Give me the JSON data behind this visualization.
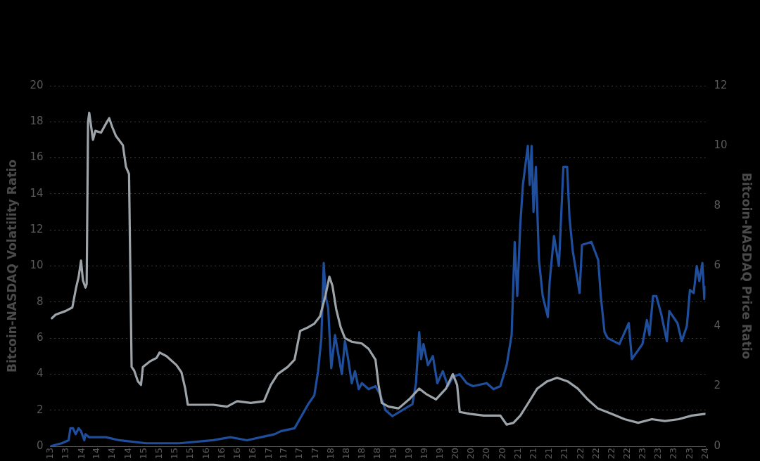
{
  "chart_data": {
    "type": "line",
    "ylabel": "Bitcoin-NASDAQ Volatility Ratio",
    "y2label": "Bitcoin-NASDAQ Price Ratio",
    "xlim": [
      "2013-07-01",
      "2024-01-01"
    ],
    "xticks": [
      {
        "value": "2013-07",
        "label": "13"
      },
      {
        "value": "2013-10",
        "label": "13"
      },
      {
        "value": "2014-01",
        "label": "14"
      },
      {
        "value": "2014-04",
        "label": "14"
      },
      {
        "value": "2014-07",
        "label": "14"
      },
      {
        "value": "2014-10",
        "label": "14"
      },
      {
        "value": "2015-01",
        "label": "15"
      },
      {
        "value": "2015-04",
        "label": "15"
      },
      {
        "value": "2015-07",
        "label": "15"
      },
      {
        "value": "2015-10",
        "label": "15"
      },
      {
        "value": "2016-01",
        "label": "16"
      },
      {
        "value": "2016-04",
        "label": "16"
      },
      {
        "value": "2016-07",
        "label": "16"
      },
      {
        "value": "2016-10",
        "label": "16"
      },
      {
        "value": "2017-01",
        "label": "17"
      },
      {
        "value": "2017-04",
        "label": "17"
      },
      {
        "value": "2017-07",
        "label": "17"
      },
      {
        "value": "2017-10",
        "label": "17"
      },
      {
        "value": "2018-01",
        "label": "18"
      },
      {
        "value": "2018-04",
        "label": "18"
      },
      {
        "value": "2018-07",
        "label": "18"
      },
      {
        "value": "2018-10",
        "label": "18"
      },
      {
        "value": "2019-01",
        "label": "19"
      },
      {
        "value": "2019-04",
        "label": "19"
      },
      {
        "value": "2019-07",
        "label": "19"
      },
      {
        "value": "2019-10",
        "label": "19"
      },
      {
        "value": "2020-01",
        "label": "20"
      },
      {
        "value": "2020-04",
        "label": "20"
      },
      {
        "value": "2020-07",
        "label": "20"
      },
      {
        "value": "2020-10",
        "label": "20"
      },
      {
        "value": "2021-01",
        "label": "21"
      },
      {
        "value": "2021-04",
        "label": "21"
      },
      {
        "value": "2021-07",
        "label": "21"
      },
      {
        "value": "2021-10",
        "label": "21"
      },
      {
        "value": "2022-01",
        "label": "22"
      },
      {
        "value": "2022-04",
        "label": "22"
      },
      {
        "value": "2022-07",
        "label": "22"
      },
      {
        "value": "2022-10",
        "label": "22"
      },
      {
        "value": "2023-01",
        "label": "23"
      },
      {
        "value": "2023-04",
        "label": "23"
      },
      {
        "value": "2023-07",
        "label": "23"
      },
      {
        "value": "2023-10",
        "label": "23"
      },
      {
        "value": "2024-01",
        "label": "24"
      }
    ],
    "ylim": [
      0,
      20
    ],
    "yticks": [
      0,
      2,
      4,
      6,
      8,
      10,
      12,
      14,
      16,
      18,
      20
    ],
    "y2lim": [
      0,
      12
    ],
    "y2ticks": [
      0,
      2,
      4,
      6,
      8,
      10,
      12
    ],
    "grid": "y",
    "legend": false,
    "marker": "none",
    "line_style": "solid",
    "series": [
      {
        "color": "#9ca3a9",
        "x": [
          "2013-07-10",
          "2013-08-01",
          "2013-09-28",
          "2013-11-07",
          "2013-11-29",
          "2013-12-14",
          "2013-12-28",
          "2014-01-08",
          "2014-01-23",
          "2014-01-30",
          "2014-02-07",
          "2014-02-14",
          "2014-03-08",
          "2014-03-22",
          "2014-04-24",
          "2014-05-23",
          "2014-06-11",
          "2014-06-29",
          "2014-07-21",
          "2014-08-30",
          "2014-09-17",
          "2014-10-05",
          "2014-10-20",
          "2014-11-04",
          "2014-11-26",
          "2014-12-14",
          "2014-12-25",
          "2015-02-03",
          "2015-03-15",
          "2015-04-02",
          "2015-05-12",
          "2015-07-10",
          "2015-08-08",
          "2015-08-30",
          "2015-09-14",
          "2015-10-09",
          "2016-02-10",
          "2016-05-01",
          "2016-06-29",
          "2016-09-17",
          "2016-12-03",
          "2016-12-25",
          "2017-01-12",
          "2017-02-21",
          "2017-04-21",
          "2017-05-31",
          "2017-07-03",
          "2017-08-19",
          "2017-09-24",
          "2017-10-27",
          "2017-11-29",
          "2017-12-21",
          "2018-01-08",
          "2018-01-30",
          "2018-02-25",
          "2018-03-22",
          "2018-05-01",
          "2018-06-29",
          "2018-08-08",
          "2018-09-17",
          "2018-10-05",
          "2018-10-24",
          "2018-12-03",
          "2019-01-30",
          "2019-04-02",
          "2019-05-31",
          "2019-07-10",
          "2019-09-06",
          "2019-11-04",
          "2019-12-14",
          "2020-01-08",
          "2020-01-23",
          "2020-03-22",
          "2020-06-11",
          "2020-09-17",
          "2020-10-24",
          "2020-12-03",
          "2021-01-12",
          "2021-02-21",
          "2021-04-21",
          "2021-06-18",
          "2021-08-15",
          "2021-10-16",
          "2021-12-14",
          "2022-02-10",
          "2022-04-10",
          "2022-06-29",
          "2022-09-14",
          "2022-12-03",
          "2023-02-21",
          "2023-05-09",
          "2023-07-28",
          "2023-10-13",
          "2024-01-01"
        ],
        "values": [
          7.1,
          7.3,
          7.5,
          7.7,
          8.8,
          9.4,
          10.3,
          9.2,
          8.8,
          9.0,
          18.0,
          18.5,
          17.0,
          17.5,
          17.4,
          17.9,
          18.2,
          17.7,
          17.2,
          16.7,
          15.5,
          15.1,
          4.4,
          4.2,
          3.6,
          3.4,
          4.4,
          4.7,
          4.9,
          5.2,
          5.0,
          4.5,
          4.1,
          3.2,
          2.3,
          2.3,
          2.3,
          2.2,
          2.5,
          2.4,
          2.5,
          3.0,
          3.4,
          4.0,
          4.4,
          4.8,
          6.4,
          6.6,
          6.8,
          7.2,
          8.4,
          9.4,
          8.9,
          7.6,
          6.6,
          6.0,
          5.8,
          5.7,
          5.4,
          4.8,
          3.4,
          2.4,
          2.2,
          2.1,
          2.6,
          3.2,
          2.9,
          2.6,
          3.2,
          4.0,
          3.4,
          1.9,
          1.8,
          1.7,
          1.7,
          1.2,
          1.3,
          1.7,
          2.3,
          3.2,
          3.6,
          3.8,
          3.6,
          3.2,
          2.6,
          2.1,
          1.8,
          1.5,
          1.3,
          1.5,
          1.4,
          1.5,
          1.7,
          1.8
        ]
      },
      {
        "color": "#1f4e9c",
        "axis": "y2",
        "x": [
          "2013-07-01",
          "2013-09-06",
          "2013-10-16",
          "2013-10-27",
          "2013-11-11",
          "2013-11-26",
          "2013-12-14",
          "2013-12-28",
          "2014-01-16",
          "2014-01-23",
          "2014-02-14",
          "2014-05-23",
          "2014-08-08",
          "2015-01-12",
          "2015-07-28",
          "2016-02-10",
          "2016-05-20",
          "2016-08-26",
          "2016-11-15",
          "2017-02-03",
          "2017-03-11",
          "2017-05-31",
          "2017-07-10",
          "2017-08-19",
          "2017-09-24",
          "2017-10-16",
          "2017-11-04",
          "2017-11-18",
          "2017-11-29",
          "2017-12-14",
          "2018-01-01",
          "2018-01-23",
          "2018-02-10",
          "2018-03-04",
          "2018-03-22",
          "2018-04-10",
          "2018-05-01",
          "2018-05-20",
          "2018-06-11",
          "2018-06-29",
          "2018-08-08",
          "2018-09-17",
          "2018-10-16",
          "2018-11-15",
          "2018-12-25",
          "2019-02-21",
          "2019-04-21",
          "2019-05-12",
          "2019-05-31",
          "2019-06-11",
          "2019-06-25",
          "2019-07-21",
          "2019-08-19",
          "2019-09-14",
          "2019-10-16",
          "2019-11-15",
          "2019-12-14",
          "2020-01-23",
          "2020-03-04",
          "2020-04-10",
          "2020-06-29",
          "2020-08-08",
          "2020-09-17",
          "2020-10-24",
          "2020-11-22",
          "2020-12-10",
          "2020-12-25",
          "2021-01-12",
          "2021-01-27",
          "2021-02-25",
          "2021-03-08",
          "2021-03-19",
          "2021-03-30",
          "2021-04-13",
          "2021-05-01",
          "2021-05-23",
          "2021-06-22",
          "2021-07-03",
          "2021-07-28",
          "2021-08-26",
          "2021-09-21",
          "2021-10-13",
          "2021-10-27",
          "2021-11-15",
          "2021-12-25",
          "2022-01-08",
          "2022-03-04",
          "2022-04-13",
          "2022-04-28",
          "2022-05-20",
          "2022-06-07",
          "2022-08-15",
          "2022-10-09",
          "2022-10-27",
          "2022-12-28",
          "2023-01-23",
          "2023-02-07",
          "2023-02-28",
          "2023-03-19",
          "2023-04-17",
          "2023-05-20",
          "2023-06-03",
          "2023-07-21",
          "2023-08-15",
          "2023-09-14",
          "2023-10-02",
          "2023-10-24",
          "2023-11-11",
          "2023-11-26",
          "2023-12-14",
          "2023-12-25",
          "2024-01-01"
        ],
        "values": [
          0.0,
          0.1,
          0.2,
          0.6,
          0.6,
          0.4,
          0.6,
          0.5,
          0.2,
          0.4,
          0.3,
          0.3,
          0.2,
          0.1,
          0.1,
          0.2,
          0.3,
          0.2,
          0.3,
          0.4,
          0.5,
          0.6,
          1.0,
          1.4,
          1.7,
          2.5,
          3.6,
          6.1,
          5.0,
          4.6,
          2.6,
          3.7,
          3.1,
          2.4,
          3.5,
          2.9,
          2.1,
          2.5,
          1.9,
          2.1,
          1.9,
          2.0,
          1.7,
          1.2,
          1.0,
          1.2,
          1.4,
          2.1,
          3.8,
          2.9,
          3.4,
          2.7,
          3.0,
          2.1,
          2.5,
          2.0,
          2.3,
          2.4,
          2.1,
          2.0,
          2.1,
          1.9,
          2.0,
          2.7,
          3.7,
          6.8,
          5.0,
          7.4,
          8.7,
          10.0,
          8.7,
          10.0,
          7.8,
          9.3,
          6.2,
          5.0,
          4.3,
          5.5,
          7.0,
          6.0,
          9.3,
          9.3,
          7.6,
          6.5,
          5.1,
          6.7,
          6.8,
          6.2,
          5.0,
          3.8,
          3.6,
          3.4,
          4.1,
          2.9,
          3.4,
          4.2,
          3.7,
          5.0,
          5.0,
          4.4,
          3.5,
          4.5,
          4.1,
          3.5,
          4.0,
          5.2,
          5.1,
          6.0,
          5.5,
          6.1,
          4.9,
          5.3
        ]
      }
    ]
  }
}
